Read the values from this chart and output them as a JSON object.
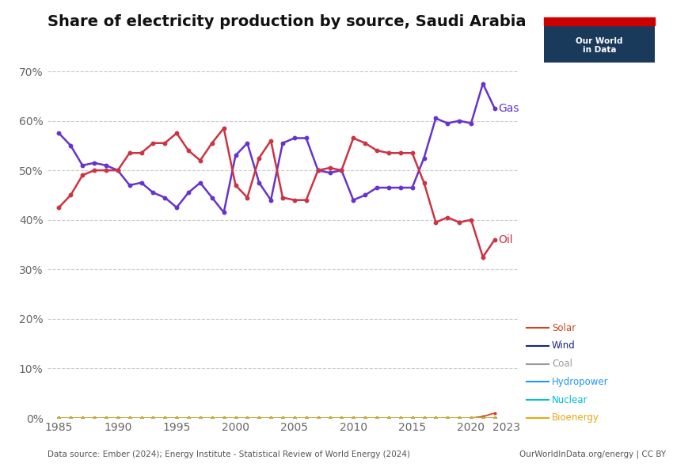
{
  "title": "Share of electricity production by source, Saudi Arabia",
  "source_text": "Data source: Ember (2024); Energy Institute - Statistical Review of World Energy (2024)",
  "owid_text": "OurWorldInData.org/energy | CC BY",
  "years": [
    1985,
    1986,
    1987,
    1988,
    1989,
    1990,
    1991,
    1992,
    1993,
    1994,
    1995,
    1996,
    1997,
    1998,
    1999,
    2000,
    2001,
    2002,
    2003,
    2004,
    2005,
    2006,
    2007,
    2008,
    2009,
    2010,
    2011,
    2012,
    2013,
    2014,
    2015,
    2016,
    2017,
    2018,
    2019,
    2020,
    2021,
    2022,
    2023
  ],
  "gas": [
    57.5,
    55.0,
    51.0,
    51.5,
    51.0,
    50.0,
    47.0,
    47.5,
    45.5,
    44.5,
    42.5,
    45.5,
    47.5,
    44.5,
    41.5,
    53.0,
    55.5,
    47.5,
    44.0,
    55.5,
    56.5,
    56.5,
    50.0,
    49.5,
    50.0,
    44.0,
    45.0,
    46.5,
    46.5,
    46.5,
    46.5,
    52.5,
    60.5,
    59.5,
    60.0,
    59.5,
    67.5,
    62.5,
    null
  ],
  "oil": [
    42.5,
    45.0,
    49.0,
    50.0,
    50.0,
    50.0,
    53.5,
    53.5,
    55.5,
    55.5,
    57.5,
    54.0,
    52.0,
    55.5,
    58.5,
    47.0,
    44.5,
    52.5,
    56.0,
    44.5,
    44.0,
    44.0,
    50.0,
    50.5,
    50.0,
    56.5,
    55.5,
    54.0,
    53.5,
    53.5,
    53.5,
    47.5,
    39.5,
    40.5,
    39.5,
    40.0,
    32.5,
    36.0,
    null
  ],
  "solar": [
    0.0,
    0.0,
    0.0,
    0.0,
    0.0,
    0.0,
    0.0,
    0.0,
    0.0,
    0.0,
    0.0,
    0.0,
    0.0,
    0.0,
    0.0,
    0.0,
    0.0,
    0.0,
    0.0,
    0.0,
    0.0,
    0.0,
    0.0,
    0.0,
    0.0,
    0.0,
    0.0,
    0.0,
    0.0,
    0.0,
    0.0,
    0.0,
    0.0,
    0.0,
    0.0,
    0.0,
    0.3,
    1.0,
    null
  ],
  "wind": [
    0.0,
    0.0,
    0.0,
    0.0,
    0.0,
    0.0,
    0.0,
    0.0,
    0.0,
    0.0,
    0.0,
    0.0,
    0.0,
    0.0,
    0.0,
    0.0,
    0.0,
    0.0,
    0.0,
    0.0,
    0.0,
    0.0,
    0.0,
    0.0,
    0.0,
    0.0,
    0.0,
    0.0,
    0.0,
    0.0,
    0.0,
    0.0,
    0.0,
    0.0,
    0.0,
    0.0,
    0.0,
    0.0,
    null
  ],
  "coal": [
    0.0,
    0.0,
    0.0,
    0.0,
    0.0,
    0.0,
    0.0,
    0.0,
    0.0,
    0.0,
    0.0,
    0.0,
    0.0,
    0.0,
    0.0,
    0.0,
    0.0,
    0.0,
    0.0,
    0.0,
    0.0,
    0.0,
    0.0,
    0.0,
    0.0,
    0.0,
    0.0,
    0.0,
    0.0,
    0.0,
    0.0,
    0.0,
    0.0,
    0.0,
    0.0,
    0.0,
    0.0,
    0.0,
    null
  ],
  "hydro": [
    0.0,
    0.0,
    0.0,
    0.0,
    0.0,
    0.0,
    0.0,
    0.0,
    0.0,
    0.0,
    0.0,
    0.0,
    0.0,
    0.0,
    0.0,
    0.0,
    0.0,
    0.0,
    0.0,
    0.0,
    0.0,
    0.0,
    0.0,
    0.0,
    0.0,
    0.0,
    0.0,
    0.0,
    0.0,
    0.0,
    0.0,
    0.0,
    0.0,
    0.0,
    0.0,
    0.0,
    0.0,
    0.0,
    null
  ],
  "nuclear": [
    0.0,
    0.0,
    0.0,
    0.0,
    0.0,
    0.0,
    0.0,
    0.0,
    0.0,
    0.0,
    0.0,
    0.0,
    0.0,
    0.0,
    0.0,
    0.0,
    0.0,
    0.0,
    0.0,
    0.0,
    0.0,
    0.0,
    0.0,
    0.0,
    0.0,
    0.0,
    0.0,
    0.0,
    0.0,
    0.0,
    0.0,
    0.0,
    0.0,
    0.0,
    0.0,
    0.0,
    0.0,
    0.0,
    null
  ],
  "bioenergy": [
    0.0,
    0.0,
    0.0,
    0.0,
    0.0,
    0.0,
    0.0,
    0.0,
    0.0,
    0.0,
    0.0,
    0.0,
    0.0,
    0.0,
    0.0,
    0.0,
    0.0,
    0.0,
    0.0,
    0.0,
    0.0,
    0.0,
    0.0,
    0.0,
    0.0,
    0.0,
    0.0,
    0.0,
    0.0,
    0.0,
    0.0,
    0.0,
    0.0,
    0.0,
    0.0,
    0.0,
    0.0,
    0.0,
    null
  ],
  "colors": {
    "gas": "#6633cc",
    "oil": "#cc3344",
    "solar": "#cc4422",
    "wind": "#1a237e",
    "coal": "#999999",
    "hydro": "#2196f3",
    "nuclear": "#00bcd4",
    "bioenergy": "#e6a817"
  },
  "ylim": [
    0,
    70
  ],
  "yticks": [
    0,
    10,
    20,
    30,
    40,
    50,
    60,
    70
  ],
  "xlim": [
    1984,
    2024
  ],
  "bg_color": "#ffffff",
  "grid_color": "#cccccc",
  "owid_box_color": "#1a3a5c",
  "owid_red": "#cc0000",
  "tick_color": "#666666",
  "xticks": [
    1985,
    1990,
    1995,
    2000,
    2005,
    2010,
    2015,
    2020,
    2023
  ]
}
